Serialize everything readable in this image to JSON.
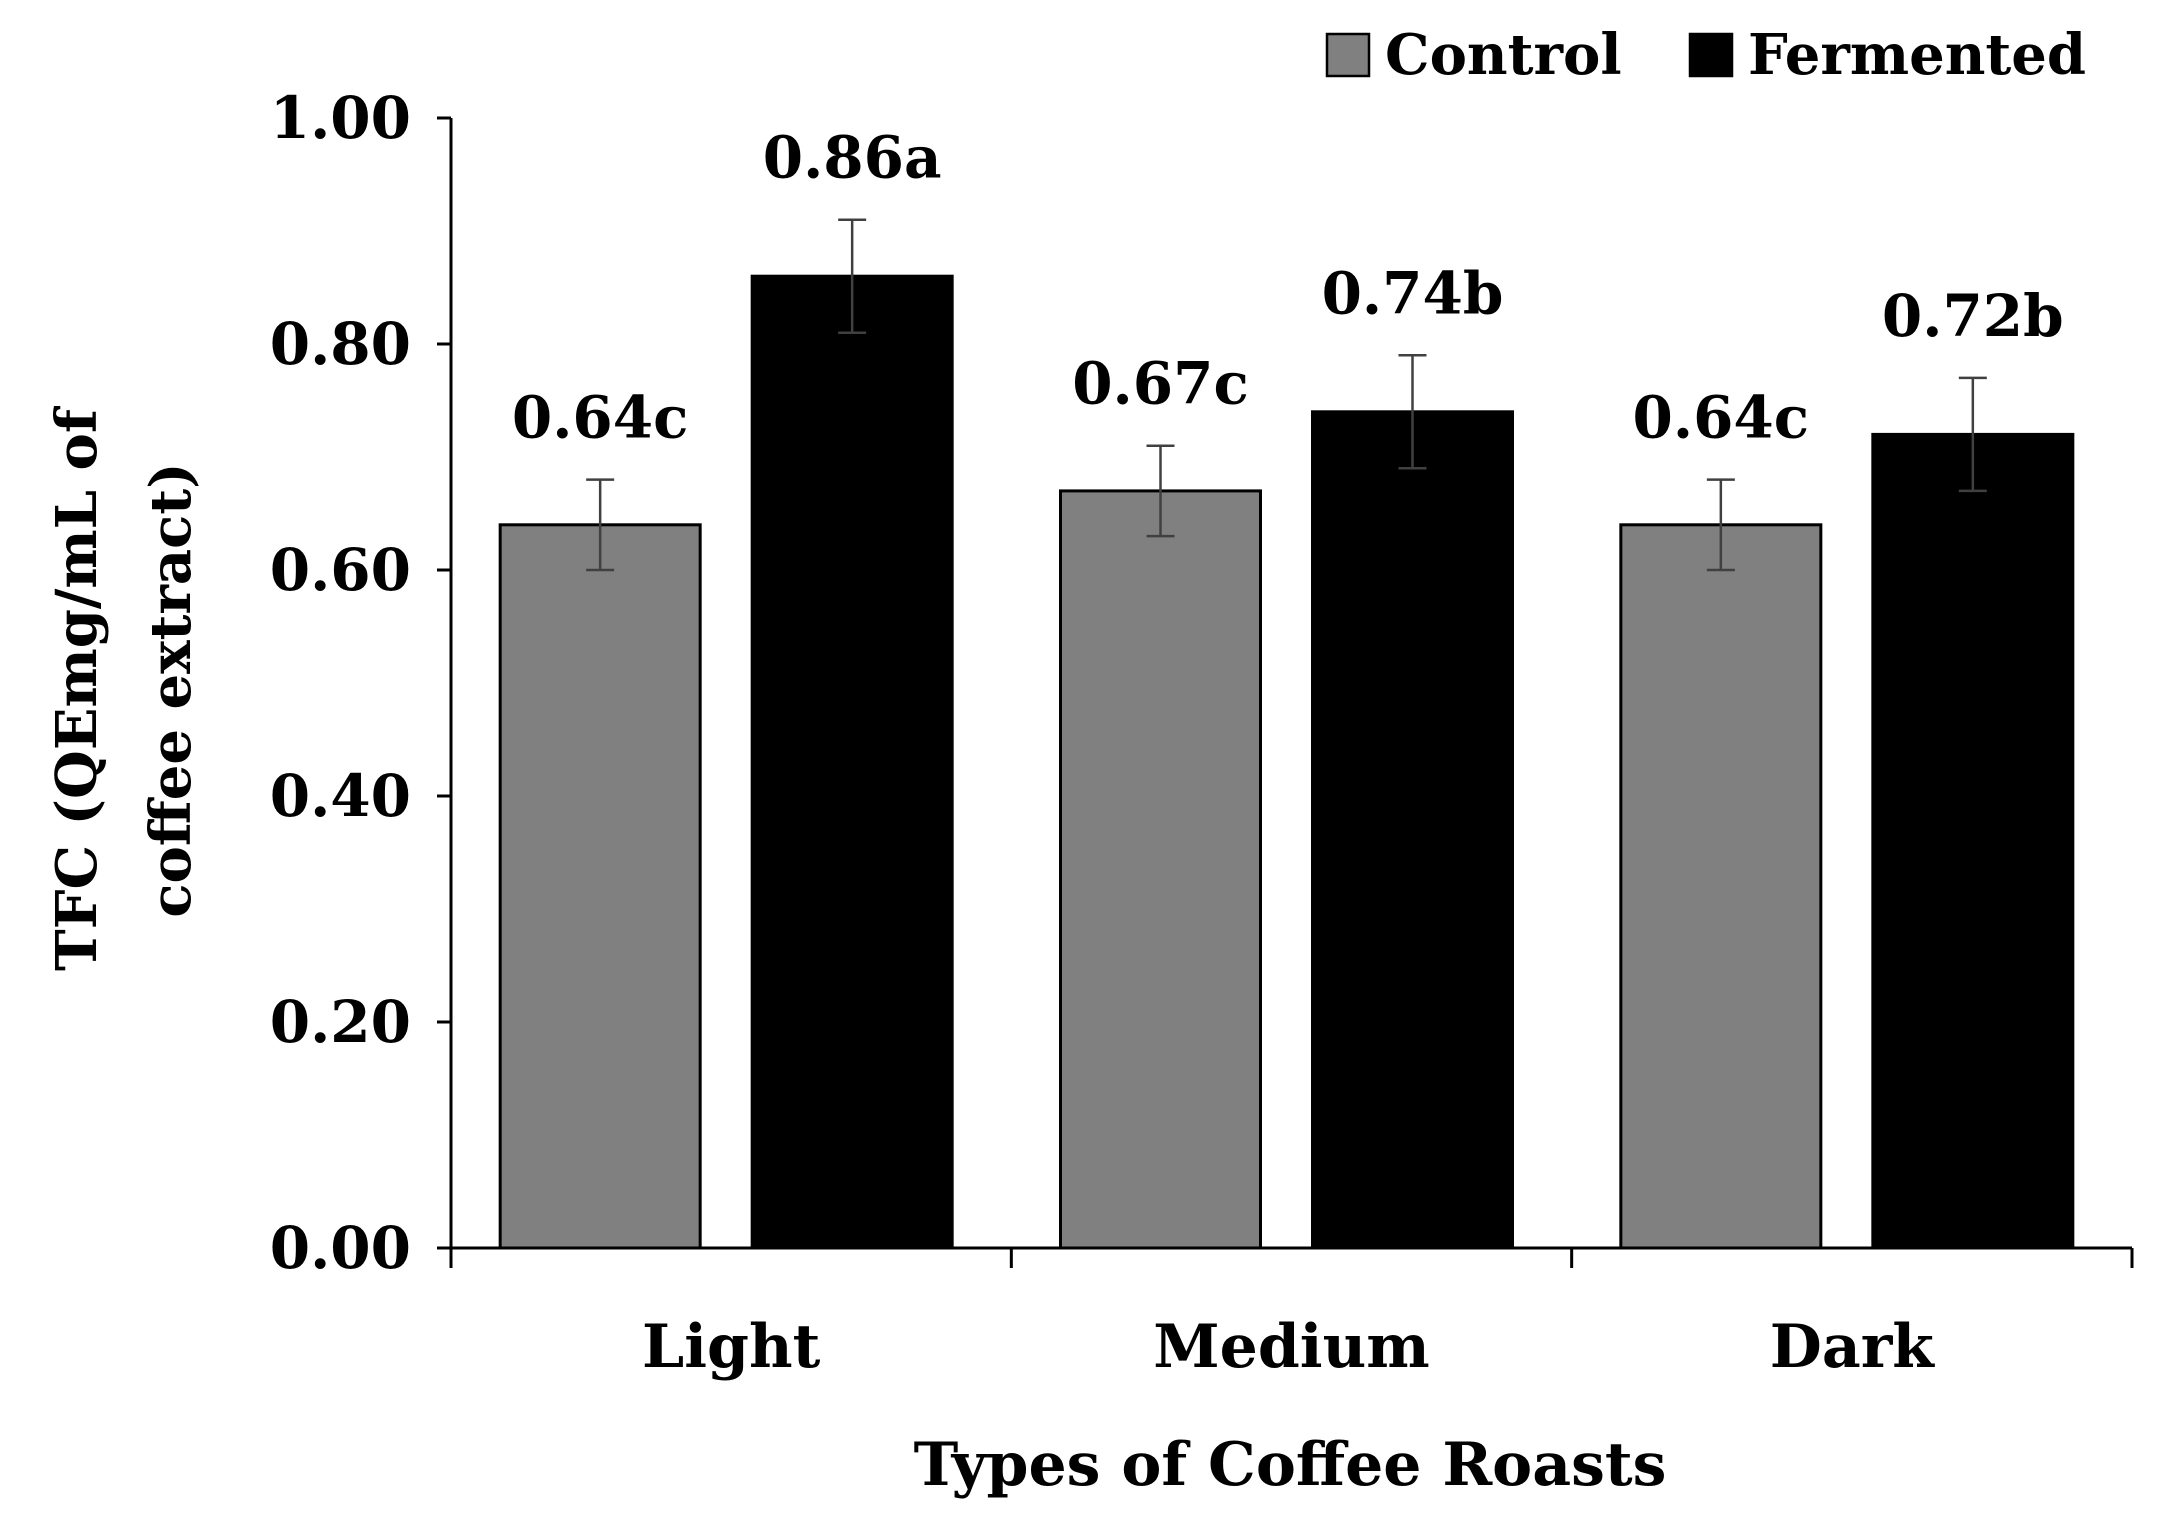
{
  "chart_data": {
    "type": "bar",
    "title": "",
    "xlabel": "Types of Coffee Roasts",
    "ylabel_lines": [
      "TFC (QEmg/mL of",
      "coffee extract)"
    ],
    "ylim": [
      0,
      1
    ],
    "yticks": [
      {
        "value": 0.0,
        "label": "0.00"
      },
      {
        "value": 0.2,
        "label": "0.20"
      },
      {
        "value": 0.4,
        "label": "0.40"
      },
      {
        "value": 0.6,
        "label": "0.60"
      },
      {
        "value": 0.8,
        "label": "0.80"
      },
      {
        "value": 1.0,
        "label": "1.00"
      }
    ],
    "categories": [
      "Light",
      "Medium",
      "Dark"
    ],
    "legend_position": "top-right",
    "series": [
      {
        "name": "Control",
        "color": "#808080",
        "values": [
          0.64,
          0.67,
          0.64
        ],
        "errors": [
          0.04,
          0.04,
          0.04
        ],
        "labels": [
          "0.64c",
          "0.67c",
          "0.64c"
        ]
      },
      {
        "name": "Fermented",
        "color": "#000000",
        "values": [
          0.86,
          0.74,
          0.72
        ],
        "errors": [
          0.05,
          0.05,
          0.05
        ],
        "labels": [
          "0.86a",
          "0.74b",
          "0.72b"
        ]
      }
    ]
  }
}
